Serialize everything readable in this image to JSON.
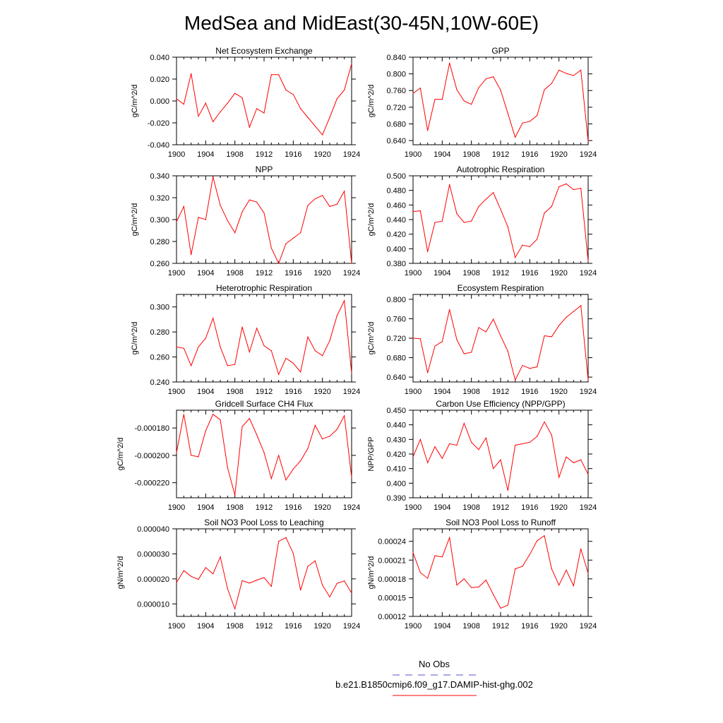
{
  "page_title": "MedSea and MidEast(30-45N,10W-60E)",
  "legend": {
    "entries": [
      {
        "label": "No Obs",
        "style": "dashed",
        "color": "#5555cc"
      },
      {
        "label": "b.e21.B1850cmip6.f09_g17.DAMIP-hist-ghg.002",
        "style": "solid",
        "color": "#ff0000"
      }
    ]
  },
  "chart_data": [
    {
      "type": "line",
      "title": "Net Ecosystem Exchange",
      "xlabel": "",
      "ylabel": "gC/m^2/d",
      "xlim": [
        1900,
        1924
      ],
      "ylim": [
        -0.04,
        0.04
      ],
      "xticks": [
        1900,
        1904,
        1908,
        1912,
        1916,
        1920,
        1924
      ],
      "yticks": [
        -0.04,
        -0.02,
        0.0,
        0.02,
        0.04
      ],
      "ytick_labels": [
        "-0.040",
        "-0.020",
        "0.000",
        "0.020",
        "0.040"
      ],
      "series": [
        {
          "color": "#ff0000",
          "x": [
            1900,
            1901,
            1902,
            1903,
            1904,
            1905,
            1906,
            1907,
            1908,
            1909,
            1910,
            1911,
            1912,
            1913,
            1914,
            1915,
            1916,
            1917,
            1918,
            1919,
            1920,
            1921,
            1922,
            1923,
            1924
          ],
          "y": [
            0.002,
            -0.003,
            0.025,
            -0.014,
            -0.002,
            -0.019,
            -0.01,
            -0.002,
            0.007,
            0.003,
            -0.024,
            -0.007,
            -0.011,
            0.024,
            0.024,
            0.01,
            0.006,
            -0.007,
            -0.015,
            -0.023,
            -0.031,
            -0.015,
            0.002,
            0.01,
            0.034
          ]
        }
      ]
    },
    {
      "type": "line",
      "title": "GPP",
      "xlabel": "",
      "ylabel": "gC/m^2/d",
      "xlim": [
        1900,
        1924
      ],
      "ylim": [
        0.63,
        0.84
      ],
      "xticks": [
        1900,
        1904,
        1908,
        1912,
        1916,
        1920,
        1924
      ],
      "yticks": [
        0.64,
        0.68,
        0.72,
        0.76,
        0.8,
        0.84
      ],
      "ytick_labels": [
        "0.640",
        "0.680",
        "0.720",
        "0.760",
        "0.800",
        "0.840"
      ],
      "series": [
        {
          "color": "#ff0000",
          "x": [
            1900,
            1901,
            1902,
            1903,
            1904,
            1905,
            1906,
            1907,
            1908,
            1909,
            1910,
            1911,
            1912,
            1913,
            1914,
            1915,
            1916,
            1917,
            1918,
            1919,
            1920,
            1921,
            1922,
            1923,
            1924
          ],
          "y": [
            0.753,
            0.766,
            0.664,
            0.739,
            0.739,
            0.826,
            0.762,
            0.735,
            0.727,
            0.767,
            0.788,
            0.793,
            0.761,
            0.705,
            0.648,
            0.682,
            0.686,
            0.7,
            0.762,
            0.777,
            0.809,
            0.801,
            0.796,
            0.809,
            0.638
          ]
        }
      ]
    },
    {
      "type": "line",
      "title": "NPP",
      "xlabel": "",
      "ylabel": "gC/m^2/d",
      "xlim": [
        1900,
        1924
      ],
      "ylim": [
        0.26,
        0.34
      ],
      "xticks": [
        1900,
        1904,
        1908,
        1912,
        1916,
        1920,
        1924
      ],
      "yticks": [
        0.26,
        0.28,
        0.3,
        0.32,
        0.34
      ],
      "ytick_labels": [
        "0.260",
        "0.280",
        "0.300",
        "0.320",
        "0.340"
      ],
      "series": [
        {
          "color": "#ff0000",
          "x": [
            1900,
            1901,
            1902,
            1903,
            1904,
            1905,
            1906,
            1907,
            1908,
            1909,
            1910,
            1911,
            1912,
            1913,
            1914,
            1915,
            1916,
            1917,
            1918,
            1919,
            1920,
            1921,
            1922,
            1923,
            1924
          ],
          "y": [
            0.298,
            0.312,
            0.268,
            0.302,
            0.3,
            0.339,
            0.313,
            0.299,
            0.288,
            0.307,
            0.318,
            0.316,
            0.306,
            0.274,
            0.26,
            0.278,
            0.283,
            0.288,
            0.313,
            0.319,
            0.322,
            0.312,
            0.314,
            0.326,
            0.26
          ]
        }
      ]
    },
    {
      "type": "line",
      "title": "Autotrophic Respiration",
      "xlabel": "",
      "ylabel": "gC/m^2/d",
      "xlim": [
        1900,
        1924
      ],
      "ylim": [
        0.38,
        0.5
      ],
      "xticks": [
        1900,
        1904,
        1908,
        1912,
        1916,
        1920,
        1924
      ],
      "yticks": [
        0.38,
        0.4,
        0.42,
        0.44,
        0.46,
        0.48,
        0.5
      ],
      "ytick_labels": [
        "0.380",
        "0.400",
        "0.420",
        "0.440",
        "0.460",
        "0.480",
        "0.500"
      ],
      "series": [
        {
          "color": "#ff0000",
          "x": [
            1900,
            1901,
            1902,
            1903,
            1904,
            1905,
            1906,
            1907,
            1908,
            1909,
            1910,
            1911,
            1912,
            1913,
            1914,
            1915,
            1916,
            1917,
            1918,
            1919,
            1920,
            1921,
            1922,
            1923,
            1924
          ],
          "y": [
            0.451,
            0.452,
            0.396,
            0.436,
            0.438,
            0.488,
            0.448,
            0.436,
            0.438,
            0.458,
            0.468,
            0.477,
            0.454,
            0.43,
            0.388,
            0.405,
            0.403,
            0.413,
            0.449,
            0.458,
            0.485,
            0.489,
            0.481,
            0.483,
            0.383
          ]
        }
      ]
    },
    {
      "type": "line",
      "title": "Heterotrophic Respiration",
      "xlabel": "",
      "ylabel": "gC/m^2/d",
      "xlim": [
        1900,
        1924
      ],
      "ylim": [
        0.24,
        0.31
      ],
      "xticks": [
        1900,
        1904,
        1908,
        1912,
        1916,
        1920,
        1924
      ],
      "yticks": [
        0.24,
        0.26,
        0.28,
        0.3
      ],
      "ytick_labels": [
        "0.240",
        "0.260",
        "0.280",
        "0.300"
      ],
      "series": [
        {
          "color": "#ff0000",
          "x": [
            1900,
            1901,
            1902,
            1903,
            1904,
            1905,
            1906,
            1907,
            1908,
            1909,
            1910,
            1911,
            1912,
            1913,
            1914,
            1915,
            1916,
            1917,
            1918,
            1919,
            1920,
            1921,
            1922,
            1923,
            1924
          ],
          "y": [
            0.268,
            0.267,
            0.253,
            0.268,
            0.275,
            0.291,
            0.268,
            0.253,
            0.254,
            0.284,
            0.264,
            0.283,
            0.269,
            0.265,
            0.246,
            0.259,
            0.255,
            0.248,
            0.276,
            0.265,
            0.261,
            0.273,
            0.293,
            0.305,
            0.247
          ]
        }
      ]
    },
    {
      "type": "line",
      "title": "Ecosystem Respiration",
      "xlabel": "",
      "ylabel": "gC/m^2/d",
      "xlim": [
        1900,
        1924
      ],
      "ylim": [
        0.63,
        0.81
      ],
      "xticks": [
        1900,
        1904,
        1908,
        1912,
        1916,
        1920,
        1924
      ],
      "yticks": [
        0.64,
        0.68,
        0.72,
        0.76,
        0.8
      ],
      "ytick_labels": [
        "0.640",
        "0.680",
        "0.720",
        "0.760",
        "0.800"
      ],
      "series": [
        {
          "color": "#ff0000",
          "x": [
            1900,
            1901,
            1902,
            1903,
            1904,
            1905,
            1906,
            1907,
            1908,
            1909,
            1910,
            1911,
            1912,
            1913,
            1914,
            1915,
            1916,
            1917,
            1918,
            1919,
            1920,
            1921,
            1922,
            1923,
            1924
          ],
          "y": [
            0.72,
            0.719,
            0.649,
            0.704,
            0.713,
            0.779,
            0.717,
            0.688,
            0.691,
            0.742,
            0.733,
            0.759,
            0.725,
            0.693,
            0.634,
            0.664,
            0.658,
            0.661,
            0.725,
            0.723,
            0.746,
            0.763,
            0.775,
            0.787,
            0.634
          ]
        }
      ]
    },
    {
      "type": "line",
      "title": "Gridcell Surface CH4 Flux",
      "xlabel": "",
      "ylabel": "gC/m^2/d",
      "xlim": [
        1900,
        1924
      ],
      "ylim": [
        -0.000231,
        -0.000167
      ],
      "xticks": [
        1900,
        1904,
        1908,
        1912,
        1916,
        1920,
        1924
      ],
      "yticks": [
        -0.00022,
        -0.0002,
        -0.00018
      ],
      "ytick_labels": [
        "-0.000220",
        "-0.000200",
        "-0.000180"
      ],
      "series": [
        {
          "color": "#ff0000",
          "x": [
            1900,
            1901,
            1902,
            1903,
            1904,
            1905,
            1906,
            1907,
            1908,
            1909,
            1910,
            1911,
            1912,
            1913,
            1914,
            1915,
            1916,
            1917,
            1918,
            1919,
            1920,
            1921,
            1922,
            1923,
            1924
          ],
          "y": [
            -0.000198,
            -0.00017,
            -0.0002,
            -0.000201,
            -0.000182,
            -0.00017,
            -0.000174,
            -0.000209,
            -0.000229,
            -0.000179,
            -0.000173,
            -0.000185,
            -0.000198,
            -0.000217,
            -0.0002,
            -0.000218,
            -0.00021,
            -0.000204,
            -0.000195,
            -0.000178,
            -0.000188,
            -0.000186,
            -0.000181,
            -0.000171,
            -0.000216
          ]
        }
      ]
    },
    {
      "type": "line",
      "title": "Carbon Use Efficiency (NPP/GPP)",
      "xlabel": "",
      "ylabel": "NPP/GPP",
      "xlim": [
        1900,
        1924
      ],
      "ylim": [
        0.39,
        0.45
      ],
      "xticks": [
        1900,
        1904,
        1908,
        1912,
        1916,
        1920,
        1924
      ],
      "yticks": [
        0.39,
        0.4,
        0.41,
        0.42,
        0.43,
        0.44,
        0.45
      ],
      "ytick_labels": [
        "0.390",
        "0.400",
        "0.410",
        "0.420",
        "0.430",
        "0.440",
        "0.450"
      ],
      "series": [
        {
          "color": "#ff0000",
          "x": [
            1900,
            1901,
            1902,
            1903,
            1904,
            1905,
            1906,
            1907,
            1908,
            1909,
            1910,
            1911,
            1912,
            1913,
            1914,
            1915,
            1916,
            1917,
            1918,
            1919,
            1920,
            1921,
            1922,
            1923,
            1924
          ],
          "y": [
            0.418,
            0.43,
            0.414,
            0.425,
            0.417,
            0.427,
            0.426,
            0.441,
            0.428,
            0.423,
            0.431,
            0.41,
            0.416,
            0.395,
            0.426,
            0.427,
            0.428,
            0.432,
            0.442,
            0.433,
            0.404,
            0.418,
            0.414,
            0.416,
            0.406
          ]
        }
      ]
    },
    {
      "type": "line",
      "title": "Soil NO3 Pool Loss to Leaching",
      "xlabel": "",
      "ylabel": "gN/m^2/d",
      "xlim": [
        1900,
        1924
      ],
      "ylim": [
        5e-06,
        4e-05
      ],
      "xticks": [
        1900,
        1904,
        1908,
        1912,
        1916,
        1920,
        1924
      ],
      "yticks": [
        1e-05,
        2e-05,
        3e-05,
        4e-05
      ],
      "ytick_labels": [
        "0.000010",
        "0.000020",
        "0.000030",
        "0.000040"
      ],
      "series": [
        {
          "color": "#ff0000",
          "x": [
            1900,
            1901,
            1902,
            1903,
            1904,
            1905,
            1906,
            1907,
            1908,
            1909,
            1910,
            1911,
            1912,
            1913,
            1914,
            1915,
            1916,
            1917,
            1918,
            1919,
            1920,
            1921,
            1922,
            1923,
            1924
          ],
          "y": [
            1.85e-05,
            2.33e-05,
            2.1e-05,
            1.98e-05,
            2.45e-05,
            2.2e-05,
            2.88e-05,
            1.6e-05,
            8e-06,
            1.93e-05,
            1.83e-05,
            1.95e-05,
            2.05e-05,
            1.7e-05,
            3.5e-05,
            3.65e-05,
            3.02e-05,
            1.55e-05,
            2.5e-05,
            2.72e-05,
            1.75e-05,
            1.28e-05,
            1.82e-05,
            1.92e-05,
            1.43e-05
          ]
        }
      ]
    },
    {
      "type": "line",
      "title": "Soil NO3 Pool Loss to Runoff",
      "xlabel": "",
      "ylabel": "gN/m^2/d",
      "xlim": [
        1900,
        1924
      ],
      "ylim": [
        0.00012,
        0.00026
      ],
      "xticks": [
        1900,
        1904,
        1908,
        1912,
        1916,
        1920,
        1924
      ],
      "yticks": [
        0.00012,
        0.00015,
        0.00018,
        0.00021,
        0.00024
      ],
      "ytick_labels": [
        "0.00012",
        "0.00015",
        "0.00018",
        "0.00021",
        "0.00024"
      ],
      "series": [
        {
          "color": "#ff0000",
          "x": [
            1900,
            1901,
            1902,
            1903,
            1904,
            1905,
            1906,
            1907,
            1908,
            1909,
            1910,
            1911,
            1912,
            1913,
            1914,
            1915,
            1916,
            1917,
            1918,
            1919,
            1920,
            1921,
            1922,
            1923,
            1924
          ],
          "y": [
            0.000222,
            0.00019,
            0.000181,
            0.000217,
            0.000215,
            0.000246,
            0.00017,
            0.00018,
            0.000166,
            0.000167,
            0.000178,
            0.000155,
            0.000133,
            0.000138,
            0.000196,
            0.0002,
            0.000219,
            0.000241,
            0.000249,
            0.000196,
            0.00017,
            0.000194,
            0.000169,
            0.000228,
            0.000189
          ]
        }
      ]
    }
  ]
}
